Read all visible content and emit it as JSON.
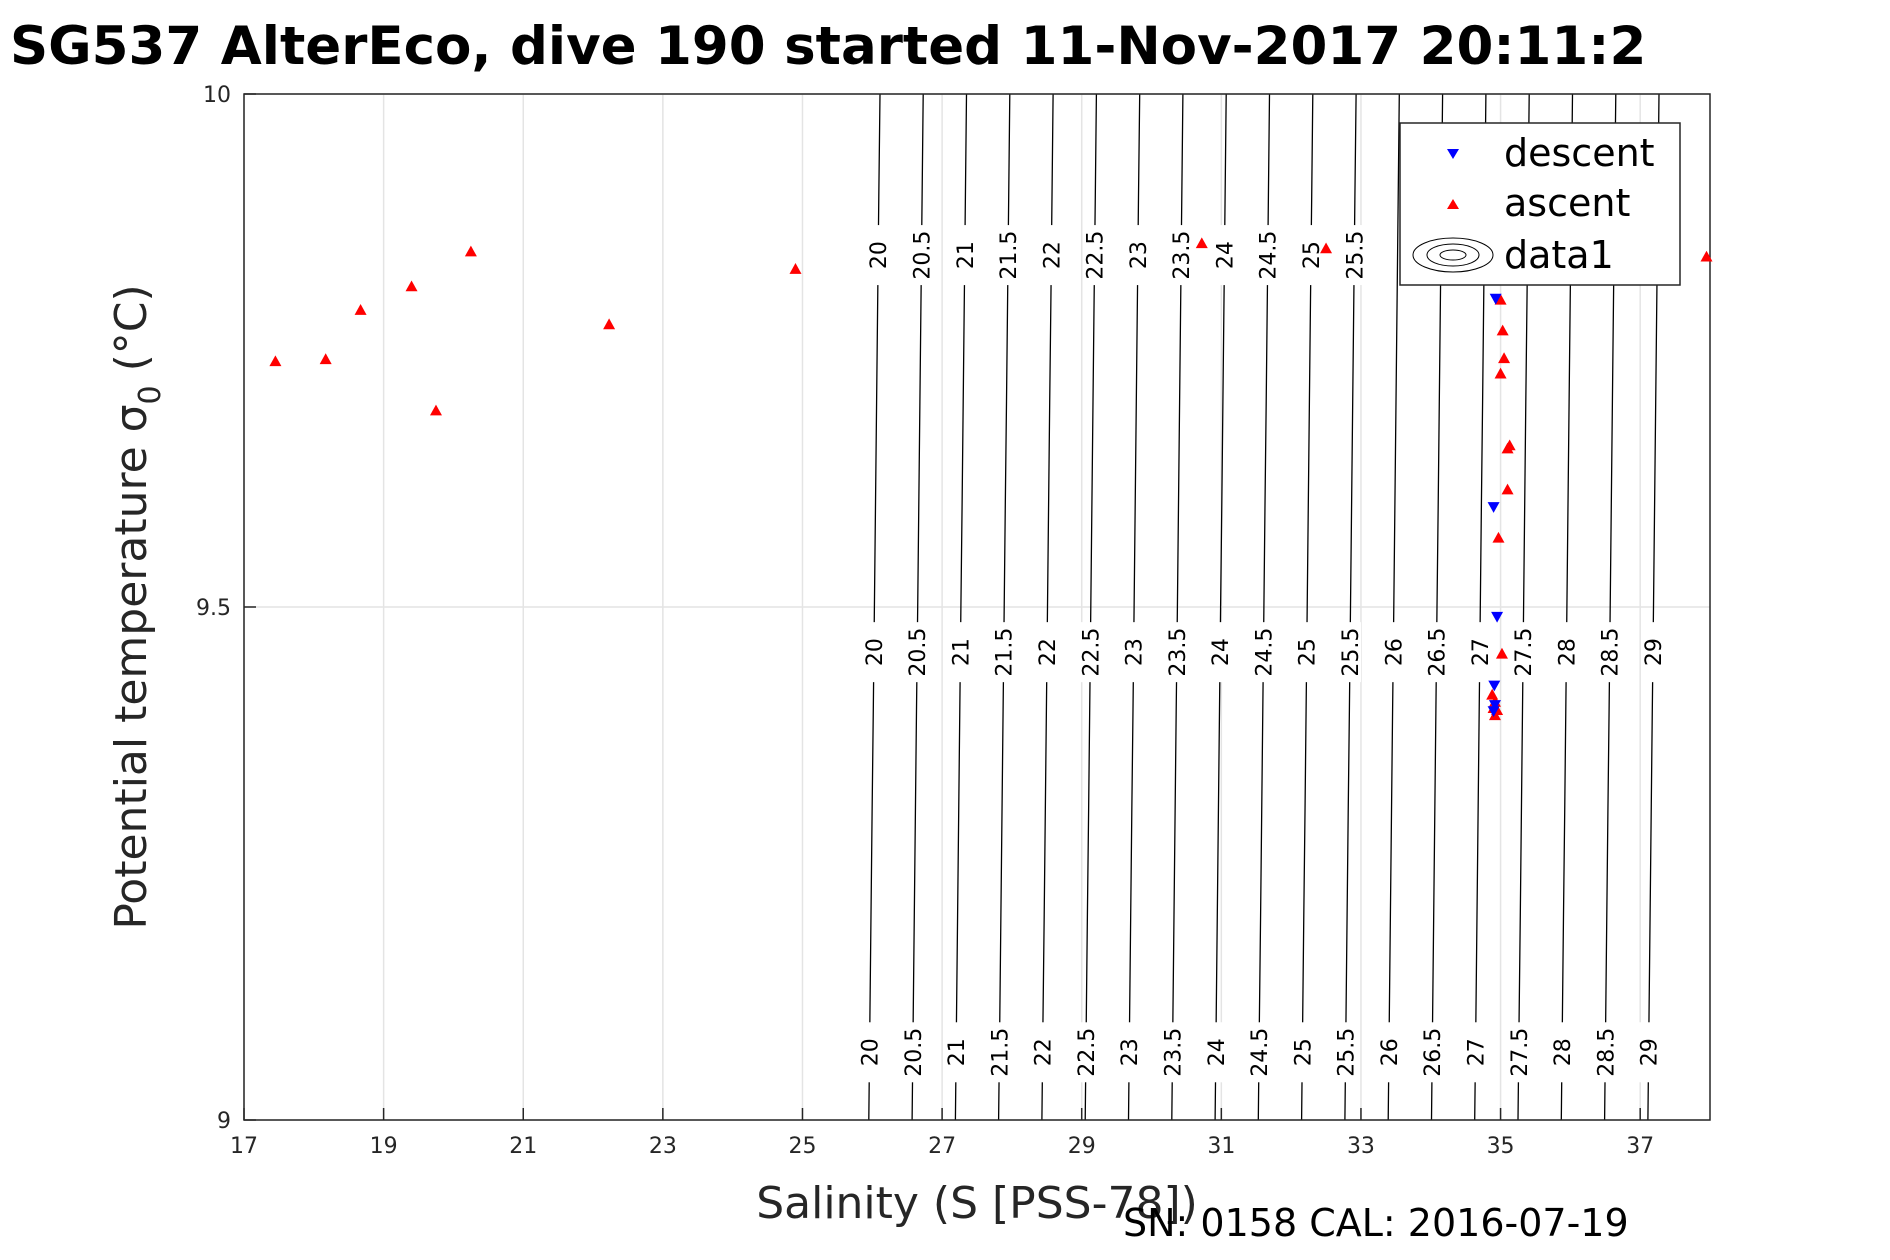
{
  "chart_data": {
    "type": "scatter",
    "title": "SG537 AlterEco, dive 190 started 11-Nov-2017 20:11:2",
    "xlabel": "Salinity (S [PSS-78])",
    "ylabel": "Potential temperature σ",
    "ylabel_sub": "0",
    "ylabel_unit": " (°C)",
    "xlim": [
      17,
      38
    ],
    "ylim": [
      9,
      10
    ],
    "xticks": [
      17,
      19,
      21,
      23,
      25,
      27,
      29,
      31,
      33,
      35,
      37
    ],
    "yticks": [
      9,
      9.5,
      10
    ],
    "ytick_labels": [
      "9",
      "9.5",
      "10"
    ],
    "grid": true,
    "legend_position": "top-right",
    "series": [
      {
        "name": "descent",
        "marker": "triangle-down",
        "color": "#0000ff",
        "points": [
          [
            34.93,
            9.8
          ],
          [
            34.9,
            9.597
          ],
          [
            34.95,
            9.49
          ],
          [
            34.91,
            9.423
          ],
          [
            34.92,
            9.404
          ],
          [
            34.9,
            9.398
          ]
        ]
      },
      {
        "name": "ascent",
        "marker": "triangle-up",
        "color": "#ff0000",
        "points": [
          [
            17.45,
            9.74
          ],
          [
            18.17,
            9.742
          ],
          [
            18.67,
            9.79
          ],
          [
            19.4,
            9.813
          ],
          [
            19.75,
            9.692
          ],
          [
            20.25,
            9.847
          ],
          [
            22.23,
            9.776
          ],
          [
            24.9,
            9.83
          ],
          [
            30.72,
            9.855
          ],
          [
            32.5,
            9.85
          ],
          [
            37.95,
            9.842
          ],
          [
            35.0,
            9.8
          ],
          [
            35.03,
            9.77
          ],
          [
            35.05,
            9.743
          ],
          [
            35.0,
            9.728
          ],
          [
            35.1,
            9.655
          ],
          [
            35.13,
            9.658
          ],
          [
            35.1,
            9.615
          ],
          [
            34.97,
            9.568
          ],
          [
            35.02,
            9.455
          ],
          [
            34.88,
            9.415
          ],
          [
            34.92,
            9.408
          ],
          [
            34.9,
            9.402
          ],
          [
            34.95,
            9.4
          ],
          [
            34.92,
            9.395
          ]
        ]
      },
      {
        "name": "data1",
        "marker": "contour",
        "color": "#000000",
        "levels": [
          20,
          20.5,
          21,
          21.5,
          22,
          22.5,
          23,
          23.5,
          24,
          24.5,
          25,
          25.5,
          26,
          26.5,
          27,
          27.5,
          28,
          28.5,
          29
        ]
      }
    ],
    "contour_label_rows": [
      {
        "y": 9.843,
        "labels": [
          "20",
          "20.5",
          "21",
          "21.5",
          "22",
          "22.5",
          "23",
          "23.5",
          "24",
          "24.5",
          "25",
          "25.5",
          "",
          "",
          "",
          "",
          "",
          "",
          "29"
        ]
      },
      {
        "y": 9.456,
        "labels": [
          "20",
          "20.5",
          "21",
          "21.5",
          "22",
          "22.5",
          "23",
          "23.5",
          "24",
          "24.5",
          "25",
          "25.5",
          "26",
          "26.5",
          "27",
          "27.5",
          "28",
          "28.5",
          "29"
        ]
      },
      {
        "y": 9.066,
        "labels": [
          "20",
          "20.5",
          "21",
          "21.5",
          "22",
          "22.5",
          "23",
          "23.5",
          "24",
          "24.5",
          "25",
          "25.5",
          "26",
          "26.5",
          "27",
          "27.5",
          "28",
          "28.5",
          "29"
        ]
      }
    ],
    "footer": "SN: 0158  CAL: 2016-07-19"
  }
}
